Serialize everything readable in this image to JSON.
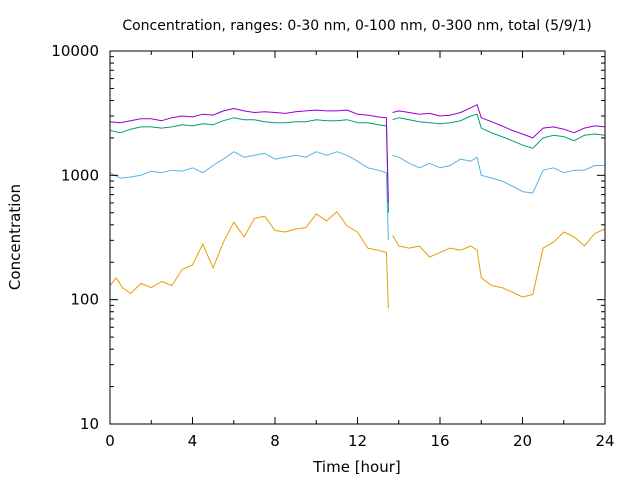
{
  "chart_data": {
    "type": "line",
    "title": "Concentration, ranges: 0-30 nm, 0-100 nm, 0-300 nm, total (5/9/1)",
    "xlabel": "Time [hour]",
    "ylabel": "Concentration",
    "xlim": [
      0,
      24
    ],
    "ylim": [
      10,
      10000
    ],
    "yscale": "log",
    "grid": false,
    "legend": "none",
    "x_ticks": [
      "0",
      "4",
      "8",
      "12",
      "16",
      "20",
      "24"
    ],
    "y_ticks": [
      "10",
      "100",
      "1000",
      "10000"
    ],
    "gap": [
      13.5,
      13.7
    ],
    "series": [
      {
        "color": "#e69f00",
        "points": [
          [
            0,
            130
          ],
          [
            0.3,
            150
          ],
          [
            0.6,
            125
          ],
          [
            1,
            112
          ],
          [
            1.5,
            135
          ],
          [
            2,
            125
          ],
          [
            2.5,
            140
          ],
          [
            3,
            130
          ],
          [
            3.5,
            175
          ],
          [
            4,
            190
          ],
          [
            4.5,
            280
          ],
          [
            5,
            180
          ],
          [
            5.5,
            290
          ],
          [
            6,
            420
          ],
          [
            6.5,
            320
          ],
          [
            7,
            450
          ],
          [
            7.5,
            470
          ],
          [
            8,
            360
          ],
          [
            8.5,
            350
          ],
          [
            9,
            370
          ],
          [
            9.5,
            380
          ],
          [
            10,
            490
          ],
          [
            10.5,
            430
          ],
          [
            11,
            510
          ],
          [
            11.5,
            390
          ],
          [
            12,
            350
          ],
          [
            12.5,
            260
          ],
          [
            13,
            250
          ],
          [
            13.4,
            240
          ],
          [
            13.5,
            85
          ],
          [
            13.7,
            330
          ],
          [
            14,
            270
          ],
          [
            14.5,
            260
          ],
          [
            15,
            270
          ],
          [
            15.5,
            220
          ],
          [
            16,
            240
          ],
          [
            16.5,
            260
          ],
          [
            17,
            250
          ],
          [
            17.5,
            270
          ],
          [
            17.8,
            250
          ],
          [
            18,
            150
          ],
          [
            18.5,
            130
          ],
          [
            19,
            125
          ],
          [
            19.5,
            115
          ],
          [
            20,
            105
          ],
          [
            20.5,
            110
          ],
          [
            21,
            260
          ],
          [
            21.5,
            290
          ],
          [
            22,
            350
          ],
          [
            22.5,
            320
          ],
          [
            23,
            270
          ],
          [
            23.5,
            340
          ],
          [
            24,
            370
          ]
        ]
      },
      {
        "color": "#56b4e9",
        "points": [
          [
            0,
            1050
          ],
          [
            0.5,
            950
          ],
          [
            1,
            970
          ],
          [
            1.5,
            1000
          ],
          [
            2,
            1080
          ],
          [
            2.5,
            1050
          ],
          [
            3,
            1100
          ],
          [
            3.5,
            1080
          ],
          [
            4,
            1150
          ],
          [
            4.5,
            1050
          ],
          [
            5,
            1200
          ],
          [
            5.5,
            1350
          ],
          [
            6,
            1550
          ],
          [
            6.5,
            1400
          ],
          [
            7,
            1450
          ],
          [
            7.5,
            1500
          ],
          [
            8,
            1350
          ],
          [
            8.5,
            1400
          ],
          [
            9,
            1450
          ],
          [
            9.5,
            1400
          ],
          [
            10,
            1550
          ],
          [
            10.5,
            1450
          ],
          [
            11,
            1550
          ],
          [
            11.5,
            1450
          ],
          [
            12,
            1300
          ],
          [
            12.5,
            1150
          ],
          [
            13,
            1100
          ],
          [
            13.4,
            1050
          ],
          [
            13.5,
            300
          ],
          [
            13.7,
            1450
          ],
          [
            14,
            1400
          ],
          [
            14.5,
            1250
          ],
          [
            15,
            1150
          ],
          [
            15.5,
            1250
          ],
          [
            16,
            1150
          ],
          [
            16.5,
            1200
          ],
          [
            17,
            1350
          ],
          [
            17.5,
            1300
          ],
          [
            17.8,
            1400
          ],
          [
            18,
            1000
          ],
          [
            18.5,
            950
          ],
          [
            19,
            900
          ],
          [
            19.5,
            820
          ],
          [
            20,
            740
          ],
          [
            20.5,
            720
          ],
          [
            21,
            1100
          ],
          [
            21.5,
            1150
          ],
          [
            22,
            1050
          ],
          [
            22.5,
            1100
          ],
          [
            23,
            1100
          ],
          [
            23.5,
            1200
          ],
          [
            24,
            1200
          ]
        ]
      },
      {
        "color": "#009e73",
        "points": [
          [
            0,
            2300
          ],
          [
            0.5,
            2200
          ],
          [
            1,
            2350
          ],
          [
            1.5,
            2450
          ],
          [
            2,
            2450
          ],
          [
            2.5,
            2400
          ],
          [
            3,
            2450
          ],
          [
            3.5,
            2550
          ],
          [
            4,
            2500
          ],
          [
            4.5,
            2600
          ],
          [
            5,
            2550
          ],
          [
            5.5,
            2750
          ],
          [
            6,
            2900
          ],
          [
            6.5,
            2800
          ],
          [
            7,
            2800
          ],
          [
            7.5,
            2700
          ],
          [
            8,
            2650
          ],
          [
            8.5,
            2650
          ],
          [
            9,
            2700
          ],
          [
            9.5,
            2700
          ],
          [
            10,
            2800
          ],
          [
            10.5,
            2750
          ],
          [
            11,
            2750
          ],
          [
            11.5,
            2800
          ],
          [
            12,
            2650
          ],
          [
            12.5,
            2650
          ],
          [
            13,
            2550
          ],
          [
            13.4,
            2500
          ],
          [
            13.5,
            500
          ],
          [
            13.7,
            2800
          ],
          [
            14,
            2900
          ],
          [
            14.5,
            2800
          ],
          [
            15,
            2700
          ],
          [
            15.5,
            2650
          ],
          [
            16,
            2600
          ],
          [
            16.5,
            2650
          ],
          [
            17,
            2750
          ],
          [
            17.5,
            3000
          ],
          [
            17.8,
            3100
          ],
          [
            18,
            2400
          ],
          [
            18.5,
            2200
          ],
          [
            19,
            2050
          ],
          [
            19.5,
            1900
          ],
          [
            20,
            1750
          ],
          [
            20.5,
            1650
          ],
          [
            21,
            2000
          ],
          [
            21.5,
            2100
          ],
          [
            22,
            2050
          ],
          [
            22.5,
            1900
          ],
          [
            23,
            2100
          ],
          [
            23.5,
            2150
          ],
          [
            24,
            2100
          ]
        ]
      },
      {
        "color": "#9400d3",
        "points": [
          [
            0,
            2700
          ],
          [
            0.5,
            2650
          ],
          [
            1,
            2750
          ],
          [
            1.5,
            2850
          ],
          [
            2,
            2850
          ],
          [
            2.5,
            2750
          ],
          [
            3,
            2900
          ],
          [
            3.5,
            3000
          ],
          [
            4,
            2950
          ],
          [
            4.5,
            3100
          ],
          [
            5,
            3050
          ],
          [
            5.5,
            3300
          ],
          [
            6,
            3450
          ],
          [
            6.5,
            3300
          ],
          [
            7,
            3200
          ],
          [
            7.5,
            3250
          ],
          [
            8,
            3200
          ],
          [
            8.5,
            3150
          ],
          [
            9,
            3250
          ],
          [
            9.5,
            3300
          ],
          [
            10,
            3350
          ],
          [
            10.5,
            3300
          ],
          [
            11,
            3300
          ],
          [
            11.5,
            3350
          ],
          [
            12,
            3100
          ],
          [
            12.5,
            3050
          ],
          [
            13,
            2950
          ],
          [
            13.4,
            2900
          ],
          [
            13.5,
            600
          ],
          [
            13.7,
            3200
          ],
          [
            14,
            3300
          ],
          [
            14.5,
            3200
          ],
          [
            15,
            3100
          ],
          [
            15.5,
            3150
          ],
          [
            16,
            3000
          ],
          [
            16.5,
            3050
          ],
          [
            17,
            3200
          ],
          [
            17.5,
            3500
          ],
          [
            17.8,
            3700
          ],
          [
            18,
            2900
          ],
          [
            18.5,
            2700
          ],
          [
            19,
            2500
          ],
          [
            19.5,
            2300
          ],
          [
            20,
            2150
          ],
          [
            20.5,
            2000
          ],
          [
            21,
            2400
          ],
          [
            21.5,
            2450
          ],
          [
            22,
            2350
          ],
          [
            22.5,
            2200
          ],
          [
            23,
            2400
          ],
          [
            23.5,
            2500
          ],
          [
            24,
            2450
          ]
        ]
      }
    ]
  }
}
